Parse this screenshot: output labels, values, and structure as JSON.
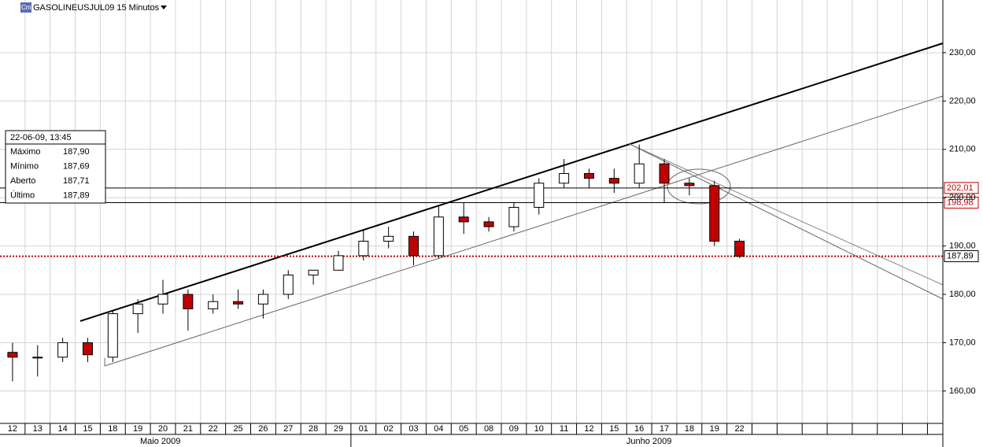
{
  "chart_data": {
    "type": "candlestick",
    "title": "GASOLINEUSJUL09 15 Minutos",
    "categories": [
      "12",
      "13",
      "14",
      "15",
      "18",
      "19",
      "20",
      "21",
      "22",
      "25",
      "26",
      "27",
      "28",
      "29",
      "01",
      "02",
      "03",
      "04",
      "05",
      "08",
      "09",
      "10",
      "11",
      "12",
      "15",
      "16",
      "17",
      "18",
      "19",
      "22"
    ],
    "months": [
      "Maio 2009",
      "Junho 2009"
    ],
    "open": [
      168,
      167,
      167,
      170,
      167,
      176,
      178,
      180,
      177,
      178.5,
      178,
      180,
      184,
      185,
      188,
      191,
      192,
      188,
      196,
      195,
      194,
      198,
      203,
      205,
      204,
      203,
      207,
      203,
      202.5,
      191
    ],
    "high": [
      170,
      169.5,
      171,
      171,
      176.5,
      179,
      183,
      181,
      180,
      181,
      181,
      185,
      185,
      189,
      193.5,
      194,
      193,
      198.5,
      199,
      196,
      199,
      204,
      208,
      206,
      206,
      211,
      208,
      204,
      203.5,
      191.5
    ],
    "low": [
      162,
      163,
      166,
      166,
      166,
      172,
      176,
      172.5,
      176,
      177,
      175,
      179,
      182,
      185,
      187,
      189.5,
      186,
      187.5,
      192.5,
      193,
      193,
      196.5,
      202,
      202,
      201,
      202,
      199,
      200.5,
      190,
      187.5
    ],
    "close": [
      167,
      167,
      170,
      167.5,
      176,
      178,
      180,
      177,
      178.5,
      178,
      180,
      184,
      185,
      188,
      191,
      192,
      188,
      196,
      195,
      194,
      198,
      203,
      205,
      204,
      203,
      207,
      203,
      202.5,
      191,
      187.89
    ],
    "up_color": "#ffffff",
    "down_color": "#c00000",
    "ylim": [
      153.3,
      240.9
    ],
    "yticks": [
      {
        "value": 160,
        "label": "160,00"
      },
      {
        "value": 170,
        "label": "170,00"
      },
      {
        "value": 180,
        "label": "180,00"
      },
      {
        "value": 190,
        "label": "190,00"
      },
      {
        "value": 200,
        "label": "200,00"
      },
      {
        "value": 210,
        "label": "210,00"
      },
      {
        "value": 220,
        "label": "220,00"
      },
      {
        "value": 230,
        "label": "230,00"
      }
    ],
    "grid": true,
    "levels": [
      {
        "value": 202.01,
        "label": "202,01",
        "color": "#c00000",
        "style": "solid"
      },
      {
        "value": 198.98,
        "label": "198,98",
        "color": "#c00000",
        "style": "solid"
      },
      {
        "value": 187.89,
        "label": "187,89",
        "color": "#000000",
        "style": "dotted"
      }
    ],
    "info": {
      "datetime": "22-06-09, 13:45",
      "rows": [
        {
          "label": "Máximo",
          "value": "187,90"
        },
        {
          "label": "Mínimo",
          "value": "187,69"
        },
        {
          "label": "Aberto",
          "value": "187,71"
        },
        {
          "label": "Último",
          "value": "187,89"
        }
      ]
    }
  }
}
